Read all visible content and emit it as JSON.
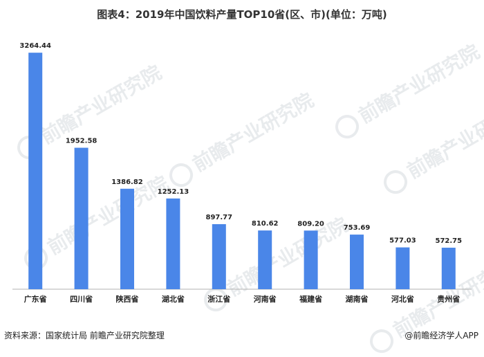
{
  "chart_data": {
    "type": "bar",
    "title": "图表4：2019年中国饮料产量TOP10省(区、市)(单位：万吨)",
    "categories": [
      "广东省",
      "四川省",
      "陕西省",
      "湖北省",
      "浙江省",
      "河南省",
      "福建省",
      "湖南省",
      "河北省",
      "贵州省"
    ],
    "values": [
      3264.44,
      1952.58,
      1386.82,
      1252.13,
      897.77,
      810.62,
      809.2,
      753.69,
      577.03,
      572.75
    ],
    "value_labels": [
      "3264.44",
      "1952.58",
      "1386.82",
      "1252.13",
      "897.77",
      "810.62",
      "809.20",
      "753.69",
      "577.03",
      "572.75"
    ],
    "ylim": [
      0,
      3400
    ],
    "grid": false,
    "bar_color": "#4a86e8",
    "axis_color": "#b0b0b0"
  },
  "footer": {
    "source": "资料来源：国家统计局 前瞻产业研究院整理",
    "brand": "@前瞻经济学人APP"
  },
  "watermark": {
    "text": "前瞻产业研究院"
  }
}
